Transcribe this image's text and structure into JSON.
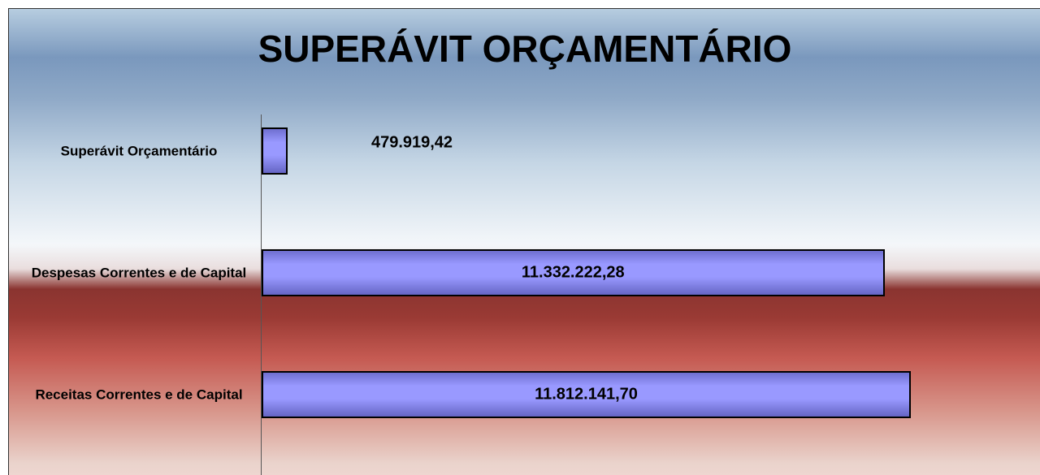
{
  "chart_data": {
    "type": "bar",
    "orientation": "horizontal",
    "title": "SUPERÁVIT ORÇAMENTÁRIO",
    "categories": [
      "Superávit Orçamentário",
      "Despesas Correntes e de Capital",
      "Receitas Correntes e de Capital"
    ],
    "values": [
      479919.42,
      11332222.28,
      11812141.7
    ],
    "value_labels": [
      "479.919,42",
      "11.332.222,28",
      "11.812.141,70"
    ],
    "color": "#9999ff"
  }
}
